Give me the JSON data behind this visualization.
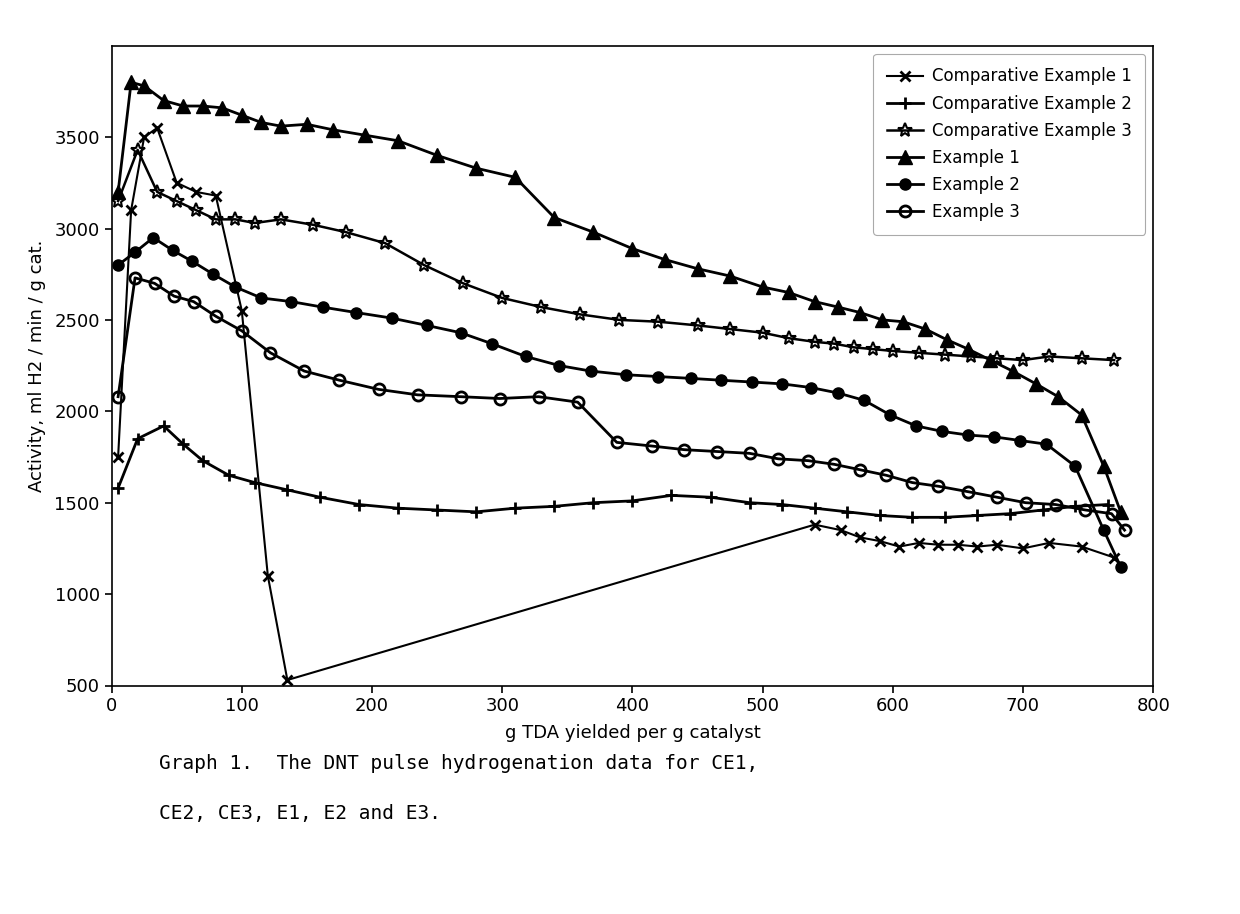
{
  "caption_line1": "    Graph 1.  The DNT pulse hydrogenation data for CE1,",
  "caption_line2": "    CE2, CE3, E1, E2 and E3.",
  "xlabel": "g TDA yielded per g catalyst",
  "ylabel": "Activity, ml H2 / min / g cat.",
  "xlim": [
    0,
    800
  ],
  "ylim": [
    500,
    4000
  ],
  "yticks": [
    500,
    1000,
    1500,
    2000,
    2500,
    3000,
    3500
  ],
  "xticks": [
    0,
    100,
    200,
    300,
    400,
    500,
    600,
    700,
    800
  ],
  "background_color": "#ffffff",
  "series": [
    {
      "label": "Comparative Example 1",
      "marker": "x",
      "markersize": 7,
      "linewidth": 1.5,
      "color": "#000000",
      "fillstyle": "none",
      "markeredgewidth": 2.0,
      "x": [
        5,
        15,
        25,
        35,
        50,
        65,
        80,
        100,
        120,
        135,
        540,
        560,
        575,
        590,
        605,
        620,
        635,
        650,
        665,
        680,
        700,
        720,
        745,
        770
      ],
      "y": [
        1750,
        3100,
        3500,
        3550,
        3250,
        3200,
        3180,
        2550,
        1100,
        530,
        1380,
        1350,
        1310,
        1290,
        1260,
        1280,
        1270,
        1270,
        1260,
        1270,
        1250,
        1280,
        1260,
        1200
      ]
    },
    {
      "label": "Comparative Example 2",
      "marker": "+",
      "markersize": 9,
      "linewidth": 2.0,
      "color": "#000000",
      "fillstyle": "none",
      "markeredgewidth": 2.0,
      "x": [
        5,
        20,
        40,
        55,
        70,
        90,
        110,
        135,
        160,
        190,
        220,
        250,
        280,
        310,
        340,
        370,
        400,
        430,
        460,
        490,
        515,
        540,
        565,
        590,
        615,
        640,
        665,
        690,
        715,
        740,
        765
      ],
      "y": [
        1580,
        1850,
        1920,
        1820,
        1730,
        1650,
        1610,
        1570,
        1530,
        1490,
        1470,
        1460,
        1450,
        1470,
        1480,
        1500,
        1510,
        1540,
        1530,
        1500,
        1490,
        1470,
        1450,
        1430,
        1420,
        1420,
        1430,
        1440,
        1460,
        1480,
        1490
      ]
    },
    {
      "label": "Comparative Example 3",
      "marker": "*",
      "markersize": 10,
      "linewidth": 1.8,
      "color": "#000000",
      "fillstyle": "none",
      "markeredgewidth": 1.5,
      "x": [
        5,
        20,
        35,
        50,
        65,
        80,
        95,
        110,
        130,
        155,
        180,
        210,
        240,
        270,
        300,
        330,
        360,
        390,
        420,
        450,
        475,
        500,
        520,
        540,
        555,
        570,
        585,
        600,
        620,
        640,
        660,
        680,
        700,
        720,
        745,
        770
      ],
      "y": [
        3150,
        3430,
        3200,
        3150,
        3100,
        3050,
        3050,
        3030,
        3050,
        3020,
        2980,
        2920,
        2800,
        2700,
        2620,
        2570,
        2530,
        2500,
        2490,
        2470,
        2450,
        2430,
        2400,
        2380,
        2370,
        2350,
        2340,
        2330,
        2320,
        2310,
        2300,
        2290,
        2280,
        2300,
        2290,
        2280
      ]
    },
    {
      "label": "Example 1",
      "marker": "^",
      "markersize": 10,
      "linewidth": 2.0,
      "color": "#000000",
      "fillstyle": "full",
      "markeredgewidth": 1.0,
      "x": [
        5,
        15,
        25,
        40,
        55,
        70,
        85,
        100,
        115,
        130,
        150,
        170,
        195,
        220,
        250,
        280,
        310,
        340,
        370,
        400,
        425,
        450,
        475,
        500,
        520,
        540,
        558,
        575,
        592,
        608,
        625,
        642,
        658,
        675,
        692,
        710,
        727,
        745,
        762,
        775
      ],
      "y": [
        3200,
        3800,
        3780,
        3700,
        3670,
        3670,
        3660,
        3620,
        3580,
        3560,
        3570,
        3540,
        3510,
        3480,
        3400,
        3330,
        3280,
        3060,
        2980,
        2890,
        2830,
        2780,
        2740,
        2680,
        2650,
        2600,
        2570,
        2540,
        2500,
        2490,
        2450,
        2390,
        2340,
        2280,
        2220,
        2150,
        2080,
        1980,
        1700,
        1450
      ]
    },
    {
      "label": "Example 2",
      "marker": "o",
      "markersize": 8,
      "linewidth": 2.0,
      "color": "#000000",
      "fillstyle": "full",
      "markeredgewidth": 1.0,
      "x": [
        5,
        18,
        32,
        47,
        62,
        78,
        95,
        115,
        138,
        162,
        188,
        215,
        242,
        268,
        292,
        318,
        344,
        368,
        395,
        420,
        445,
        468,
        492,
        515,
        537,
        558,
        578,
        598,
        618,
        638,
        658,
        678,
        698,
        718,
        740,
        762,
        775
      ],
      "y": [
        2800,
        2870,
        2950,
        2880,
        2820,
        2750,
        2680,
        2620,
        2600,
        2570,
        2540,
        2510,
        2470,
        2430,
        2370,
        2300,
        2250,
        2220,
        2200,
        2190,
        2180,
        2170,
        2160,
        2150,
        2130,
        2100,
        2060,
        1980,
        1920,
        1890,
        1870,
        1860,
        1840,
        1820,
        1700,
        1350,
        1150
      ]
    },
    {
      "label": "Example 3",
      "marker": "o",
      "markersize": 8,
      "linewidth": 2.0,
      "color": "#000000",
      "fillstyle": "none",
      "markeredgewidth": 2.0,
      "x": [
        5,
        18,
        33,
        48,
        63,
        80,
        100,
        122,
        148,
        175,
        205,
        235,
        268,
        298,
        328,
        358,
        388,
        415,
        440,
        465,
        490,
        512,
        535,
        555,
        575,
        595,
        615,
        635,
        658,
        680,
        702,
        725,
        748,
        768,
        778
      ],
      "y": [
        2080,
        2730,
        2700,
        2630,
        2600,
        2520,
        2440,
        2320,
        2220,
        2170,
        2120,
        2090,
        2080,
        2070,
        2080,
        2050,
        1830,
        1810,
        1790,
        1780,
        1770,
        1740,
        1730,
        1710,
        1680,
        1650,
        1610,
        1590,
        1560,
        1530,
        1500,
        1490,
        1460,
        1440,
        1350
      ]
    }
  ]
}
